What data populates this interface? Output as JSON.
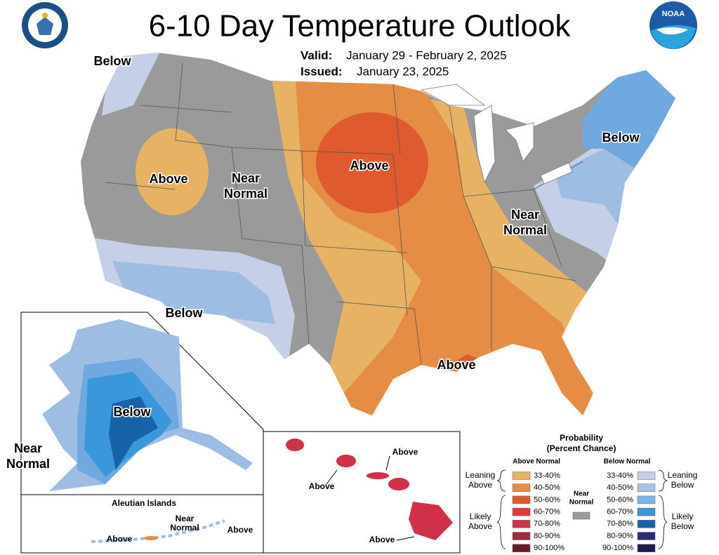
{
  "header": {
    "title": "6-10 Day Temperature Outlook",
    "valid_label": "Valid:",
    "valid": "January 29 - February 2, 2025",
    "issued_label": "Issued:",
    "issued": "January 23, 2025"
  },
  "logos": {
    "noaa": "NOAA"
  },
  "map_labels": {
    "northwest": [
      "Below"
    ],
    "west": [
      "Above"
    ],
    "mountain": [
      "Near",
      "Normal"
    ],
    "central": [
      "Above"
    ],
    "northeast": [
      "Below"
    ],
    "east": [
      "Near",
      "Normal"
    ],
    "southwest": [
      "Below"
    ],
    "gulf": [
      "Above"
    ],
    "alaska": [
      "Below"
    ],
    "alaska_west": [
      "Near",
      "Normal"
    ],
    "aleutian_title": [
      "Aleutian Islands"
    ],
    "aleutian_near": [
      "Near",
      "Normal"
    ],
    "aleutian_above_east": [
      "Above"
    ],
    "aleutian_above_west": [
      "Above"
    ],
    "hawaii_east": [
      "Above"
    ],
    "hawaii_west": [
      "Above"
    ],
    "hawaii_south": [
      "Above"
    ]
  },
  "legend": {
    "title": [
      "Probability",
      "(Percent Chance)"
    ],
    "above_heading": "Above Normal",
    "below_heading": "Below Normal",
    "above_ranges": [
      {
        "range": "33-40%",
        "color": "#e8b265"
      },
      {
        "range": "40-50%",
        "color": "#e58c45"
      },
      {
        "range": "50-60%",
        "color": "#e05a30"
      },
      {
        "range": "60-70%",
        "color": "#dc3c3c"
      },
      {
        "range": "70-80%",
        "color": "#d03050"
      },
      {
        "range": "80-90%",
        "color": "#9a2e3e"
      },
      {
        "range": "90-100%",
        "color": "#6a1c22"
      }
    ],
    "below_ranges": [
      {
        "range": "33-40%",
        "color": "#c5d0e8"
      },
      {
        "range": "40-50%",
        "color": "#a9c2e3"
      },
      {
        "range": "50-60%",
        "color": "#7db3e6"
      },
      {
        "range": "60-70%",
        "color": "#3a97da"
      },
      {
        "range": "70-80%",
        "color": "#1862a8"
      },
      {
        "range": "80-90%",
        "color": "#2f2c7c"
      },
      {
        "range": "90-100%",
        "color": "#1f1a50"
      }
    ],
    "near_normal": {
      "lines": [
        "Near",
        "Normal"
      ],
      "color": "#9a9a9a"
    },
    "leaning_above": [
      "Leaning",
      "Above"
    ],
    "likely_above": [
      "Likely",
      "Above"
    ],
    "leaning_below": [
      "Leaning",
      "Below"
    ],
    "likely_below": [
      "Likely",
      "Below"
    ]
  }
}
